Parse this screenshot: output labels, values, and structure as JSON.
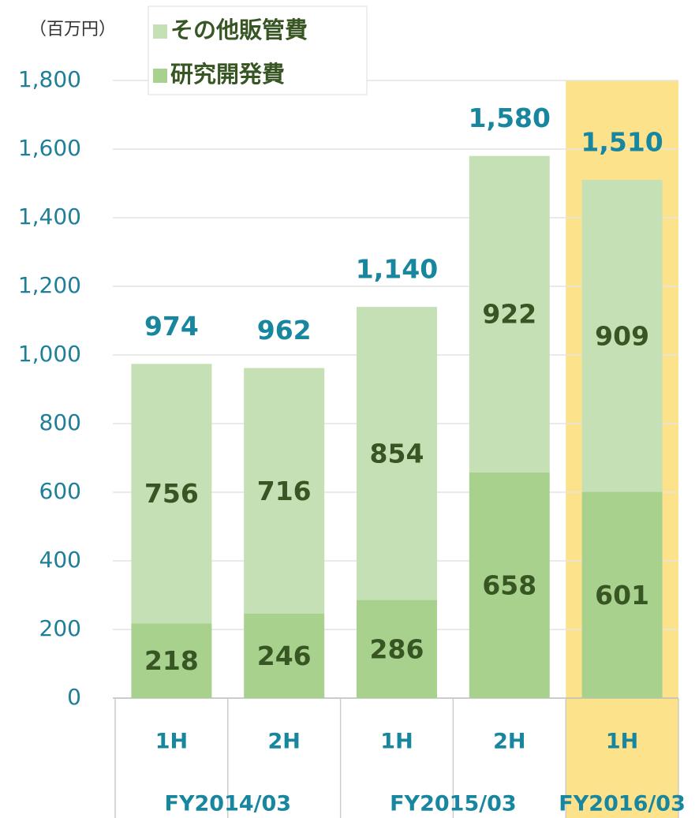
{
  "chart_data": {
    "type": "stacked_bar",
    "unit_label": "（百万円）",
    "categories": [
      "1H",
      "2H",
      "1H",
      "2H",
      "1H"
    ],
    "groups": [
      "FY2014/03",
      "FY2015/03",
      "FY2016/03"
    ],
    "group_sizes": [
      2,
      2,
      1
    ],
    "series": [
      {
        "name": "研究開発費",
        "color": "#a9d18e",
        "values": [
          218,
          246,
          286,
          658,
          601
        ]
      },
      {
        "name": "その他販管費",
        "color": "#c5e0b4",
        "values": [
          756,
          716,
          854,
          922,
          909
        ]
      }
    ],
    "totals": [
      974,
      962,
      1140,
      1580,
      1510
    ],
    "total_labels": [
      "974",
      "962",
      "1,140",
      "1,580",
      "1,510"
    ],
    "ylim": [
      0,
      1800
    ],
    "yticks": [
      0,
      200,
      400,
      600,
      800,
      {
        "value": 1000,
        "label": "1,000"
      },
      {
        "value": 1200,
        "label": "1,200"
      },
      {
        "value": 1400,
        "label": "1,400"
      },
      {
        "value": 1600,
        "label": "1,600"
      },
      {
        "value": 1800,
        "label": "1,800"
      }
    ],
    "grid": true,
    "highlight": {
      "index": 4,
      "color": "#fde28c"
    }
  }
}
